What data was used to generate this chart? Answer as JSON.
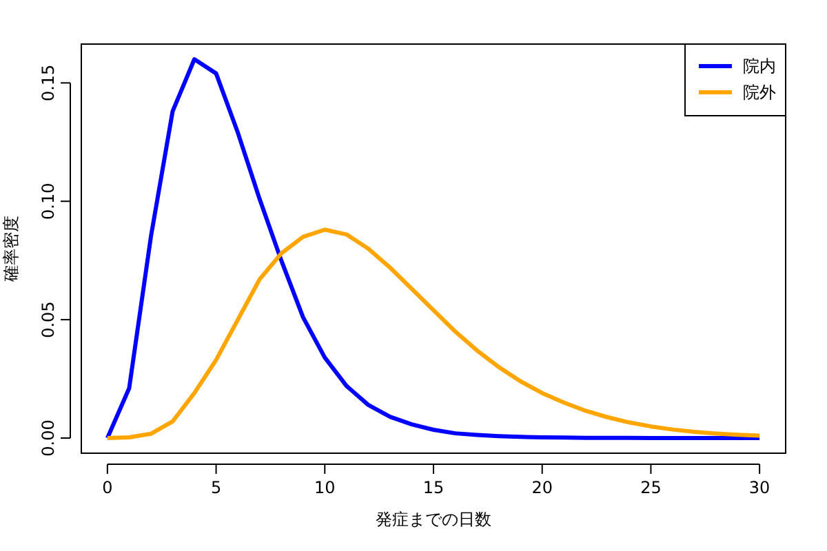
{
  "chart_data": {
    "type": "line",
    "xlabel": "発症までの日数",
    "ylabel": "確率密度",
    "x": [
      0,
      1,
      2,
      3,
      4,
      5,
      6,
      7,
      8,
      9,
      10,
      11,
      12,
      13,
      14,
      15,
      16,
      17,
      18,
      19,
      20,
      21,
      22,
      23,
      24,
      25,
      26,
      27,
      28,
      29,
      30
    ],
    "series": [
      {
        "name": "院内",
        "color": "#0000ff",
        "values": [
          0,
          0.021,
          0.085,
          0.138,
          0.16,
          0.154,
          0.129,
          0.101,
          0.075,
          0.051,
          0.034,
          0.022,
          0.014,
          0.009,
          0.0058,
          0.0035,
          0.002,
          0.0013,
          0.0008,
          0.0005,
          0.0003,
          0.0002,
          0.0001,
          0.0001,
          0.0001,
          0,
          0,
          0,
          0,
          0,
          0
        ]
      },
      {
        "name": "院外",
        "color": "#ffa500",
        "values": [
          0,
          0.0003,
          0.0018,
          0.007,
          0.019,
          0.033,
          0.05,
          0.067,
          0.078,
          0.085,
          0.088,
          0.086,
          0.08,
          0.072,
          0.063,
          0.054,
          0.045,
          0.037,
          0.03,
          0.024,
          0.019,
          0.015,
          0.0115,
          0.0088,
          0.0066,
          0.0049,
          0.0036,
          0.0026,
          0.0019,
          0.0014,
          0.001
        ]
      }
    ],
    "xlim": [
      -1.2,
      31.2
    ],
    "ylim": [
      -0.0064,
      0.1664
    ],
    "xticks": [
      0,
      5,
      10,
      15,
      20,
      25,
      30
    ],
    "yticks": [
      {
        "value": 0,
        "label": "0.00"
      },
      {
        "value": 0.05,
        "label": "0.05"
      },
      {
        "value": 0.1,
        "label": "0.10"
      },
      {
        "value": 0.15,
        "label": "0.15"
      }
    ],
    "legend": "top right",
    "marker": "none",
    "line_style": "solid",
    "grid": false
  }
}
